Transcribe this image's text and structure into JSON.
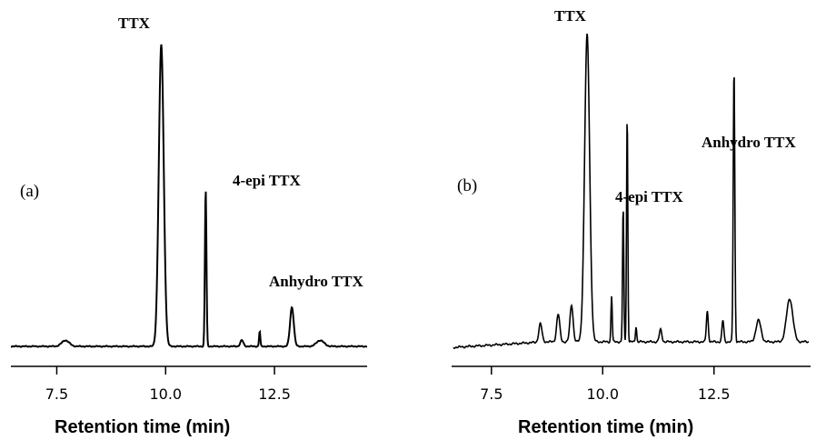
{
  "chart_data": [
    {
      "type": "line",
      "panel": "(a)",
      "xlabel": "Retention time (min)",
      "xlim": [
        7.0,
        14.7
      ],
      "xticks": [
        "7.5",
        "10.0",
        "12.5"
      ],
      "xtick_values": [
        7.5,
        10.0,
        12.5
      ],
      "annotations": [
        {
          "text": "TTX",
          "x": 9.9
        },
        {
          "text": "4-epi TTX",
          "x": 10.9
        },
        {
          "text": "Anhydro TTX",
          "x": 12.9
        }
      ],
      "peaks": [
        {
          "x": 7.7,
          "height": 0.02,
          "width": 0.12
        },
        {
          "x": 9.9,
          "height": 1.0,
          "width": 0.08
        },
        {
          "x": 10.92,
          "height": 0.52,
          "width": 0.025
        },
        {
          "x": 11.75,
          "height": 0.02,
          "width": 0.05
        },
        {
          "x": 12.16,
          "height": 0.05,
          "width": 0.02
        },
        {
          "x": 12.9,
          "height": 0.13,
          "width": 0.06
        },
        {
          "x": 13.55,
          "height": 0.02,
          "width": 0.12
        }
      ]
    },
    {
      "type": "line",
      "panel": "(b)",
      "xlabel": "Retention time (min)",
      "xlim": [
        7.0,
        14.7
      ],
      "xticks": [
        "7.5",
        "10.0",
        "12.5"
      ],
      "xtick_values": [
        7.5,
        10.0,
        12.5
      ],
      "annotations": [
        {
          "text": "TTX",
          "x": 9.65
        },
        {
          "text": "4-epi TTX",
          "x": 10.5
        },
        {
          "text": "Anhydro TTX",
          "x": 12.95
        }
      ],
      "peaks": [
        {
          "x": 8.6,
          "height": 0.06,
          "width": 0.05
        },
        {
          "x": 9.0,
          "height": 0.09,
          "width": 0.05
        },
        {
          "x": 9.3,
          "height": 0.12,
          "width": 0.05
        },
        {
          "x": 9.65,
          "height": 1.0,
          "width": 0.08
        },
        {
          "x": 10.2,
          "height": 0.15,
          "width": 0.02
        },
        {
          "x": 10.46,
          "height": 0.44,
          "width": 0.02
        },
        {
          "x": 10.55,
          "height": 0.74,
          "width": 0.02
        },
        {
          "x": 10.75,
          "height": 0.05,
          "width": 0.02
        },
        {
          "x": 11.3,
          "height": 0.04,
          "width": 0.04
        },
        {
          "x": 12.35,
          "height": 0.1,
          "width": 0.03
        },
        {
          "x": 12.7,
          "height": 0.07,
          "width": 0.03
        },
        {
          "x": 12.95,
          "height": 0.89,
          "width": 0.025
        },
        {
          "x": 13.5,
          "height": 0.07,
          "width": 0.08
        },
        {
          "x": 14.2,
          "height": 0.14,
          "width": 0.1
        }
      ]
    }
  ]
}
